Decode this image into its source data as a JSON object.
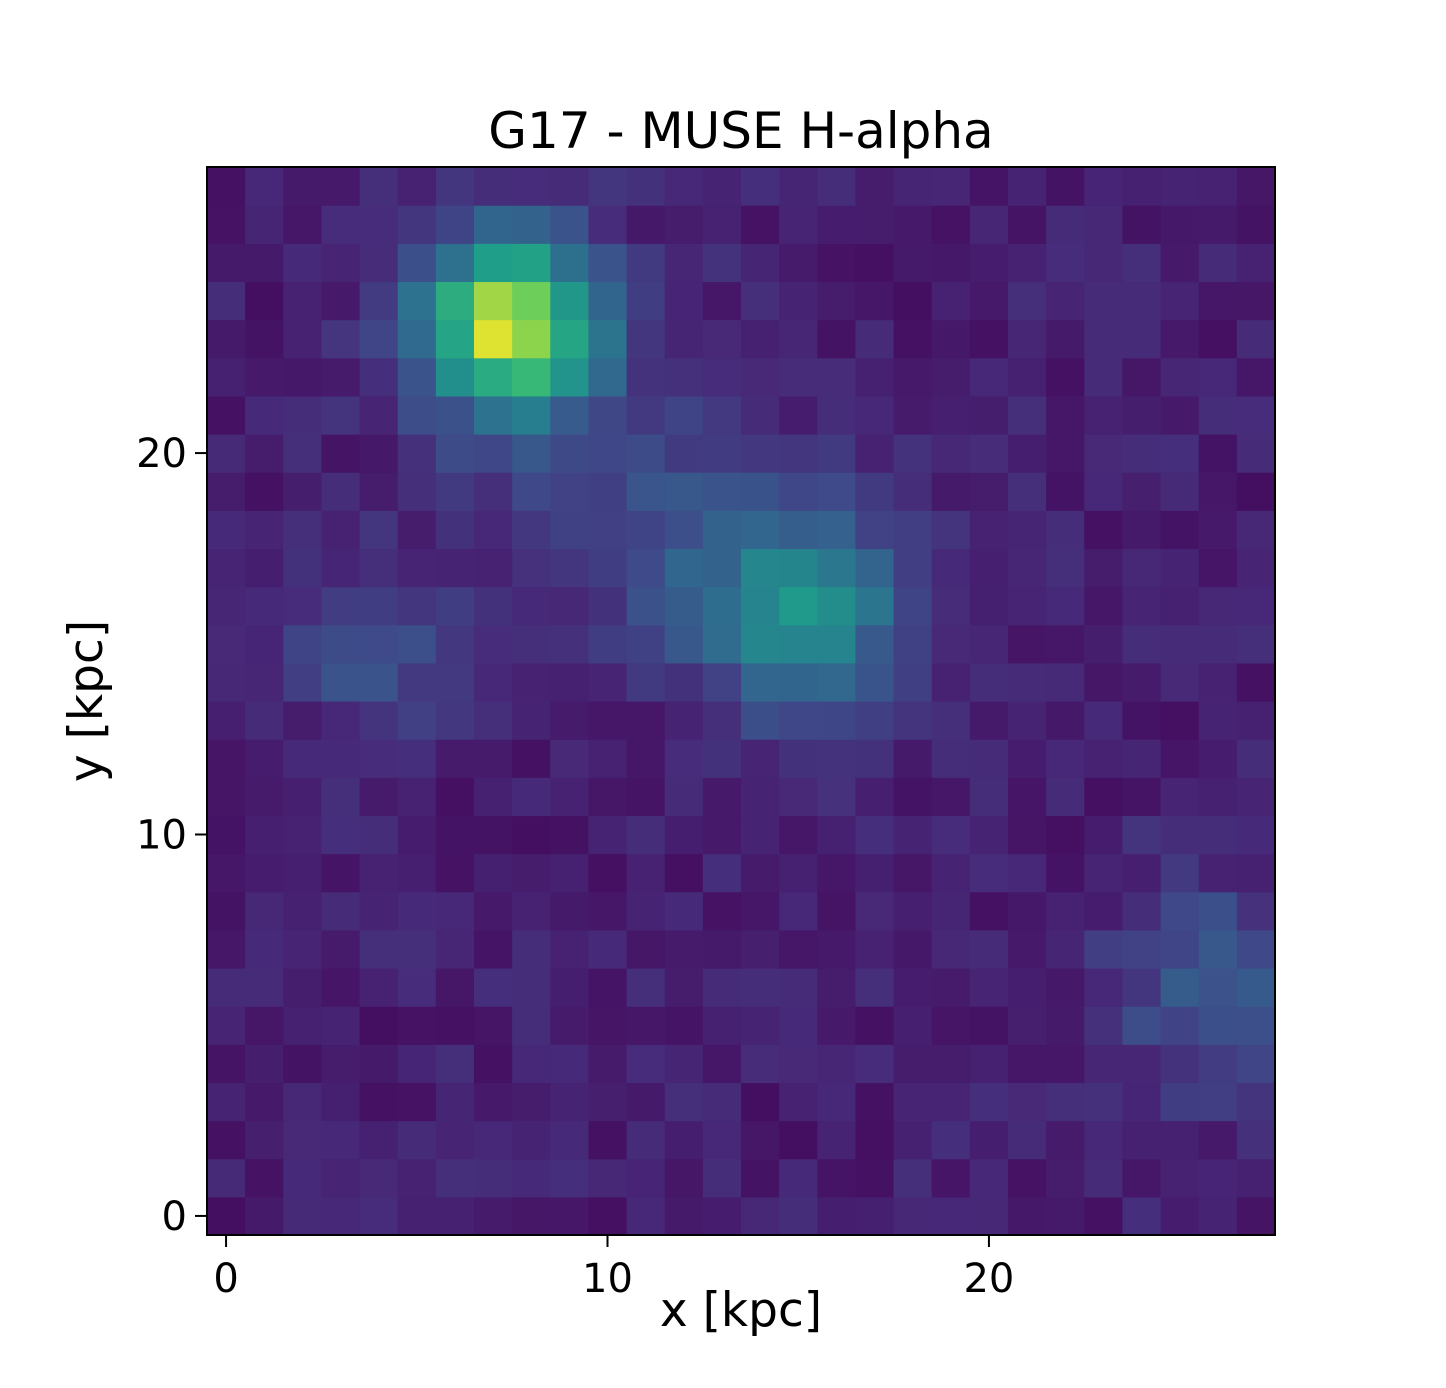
{
  "chart_data": {
    "type": "heatmap",
    "title": "G17 - MUSE H-alpha",
    "xlabel": "x [kpc]",
    "ylabel": "y [kpc]",
    "xlim": [
      -0.5,
      27.5
    ],
    "ylim": [
      -0.5,
      27.5
    ],
    "xticks": [
      0,
      10,
      20
    ],
    "yticks": [
      0,
      10,
      20
    ],
    "grid": false,
    "colormap": "viridis",
    "value_range": [
      0,
      1
    ],
    "pixel_size_kpc": 1,
    "components": [
      {
        "x": 7.4,
        "y": 23.4,
        "sigma": 1.6,
        "amplitude": 0.86
      },
      {
        "x": 15.1,
        "y": 15.9,
        "sigma": 1.9,
        "amplitude": 0.48
      },
      {
        "x": 3.8,
        "y": 14.8,
        "sigma": 1.5,
        "amplitude": 0.18
      },
      {
        "x": 11.0,
        "y": 18.0,
        "sigma": 2.2,
        "amplitude": 0.12
      },
      {
        "x": 26.0,
        "y": 6.0,
        "sigma": 1.9,
        "amplitude": 0.22
      },
      {
        "x": 9.0,
        "y": 21.0,
        "sigma": 3.0,
        "amplitude": 0.06
      }
    ],
    "background_level": 0.1,
    "noise_amplitude": 0.055
  }
}
